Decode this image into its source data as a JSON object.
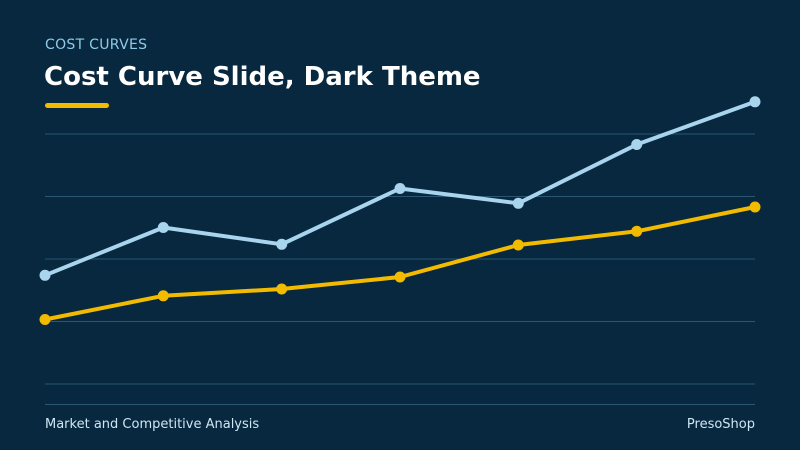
{
  "slide": {
    "eyebrow": "COST CURVES",
    "title": "Cost Curve Slide, Dark Theme",
    "footer_left": "Market and Competitive Analysis",
    "footer_right": "PresoShop"
  },
  "colors": {
    "background": "#07283e",
    "accent": "#f2bb00",
    "series_light": "#a8d4ee",
    "series_gold": "#f2bb00",
    "gridline": "#2a5672"
  },
  "chart_data": {
    "type": "line",
    "title": "",
    "xlabel": "",
    "ylabel": "",
    "x": [
      1,
      2,
      3,
      4,
      5,
      6,
      7
    ],
    "ylim": [
      0,
      100
    ],
    "grid": true,
    "series": [
      {
        "color": "#a8d4ee",
        "values": [
          43.5,
          62.6,
          55.9,
          78.2,
          72.3,
          95.8,
          112.9
        ]
      },
      {
        "color": "#f2bb00",
        "values": [
          25.8,
          35.3,
          38.0,
          42.8,
          55.6,
          61.1,
          70.8
        ]
      }
    ]
  }
}
